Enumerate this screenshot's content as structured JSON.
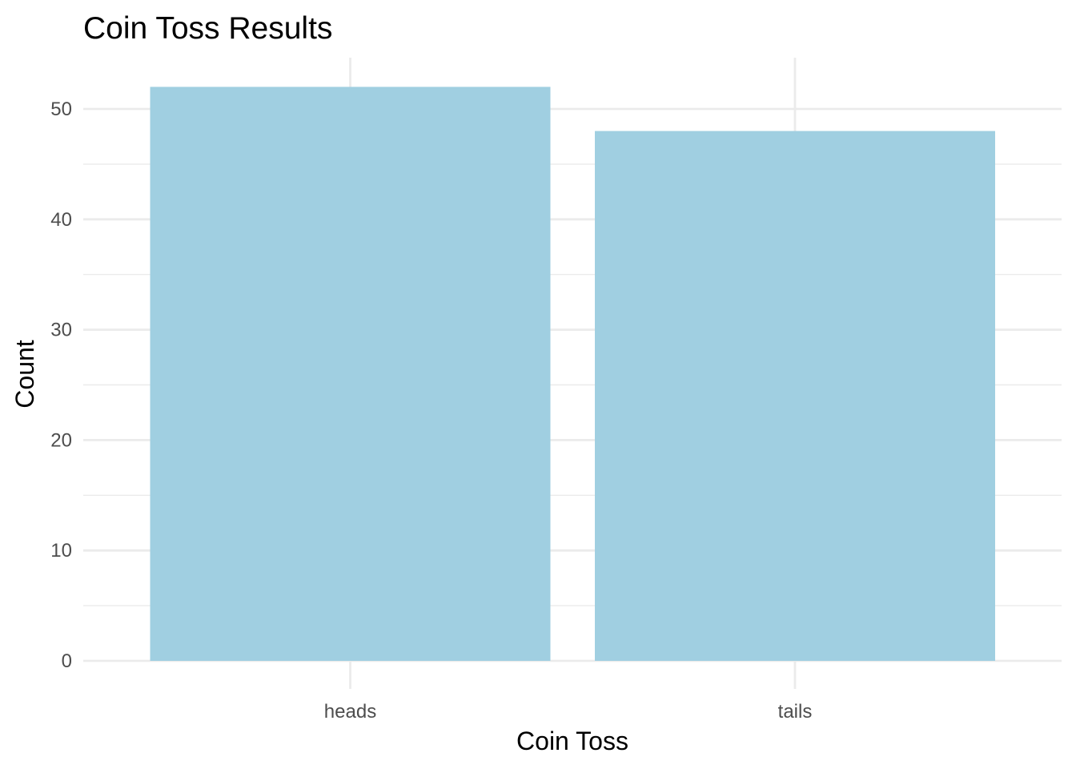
{
  "chart_data": {
    "type": "bar",
    "title": "Coin Toss Results",
    "xlabel": "Coin Toss",
    "ylabel": "Count",
    "categories": [
      "heads",
      "tails"
    ],
    "values": [
      52,
      48
    ],
    "ylim": [
      0,
      53
    ],
    "yticks": [
      0,
      10,
      20,
      30,
      40,
      50
    ],
    "grid": true,
    "bar_color": "#A0CFE1",
    "gridline_color": "#EBEBEB",
    "background_color": "#FFFFFF"
  }
}
